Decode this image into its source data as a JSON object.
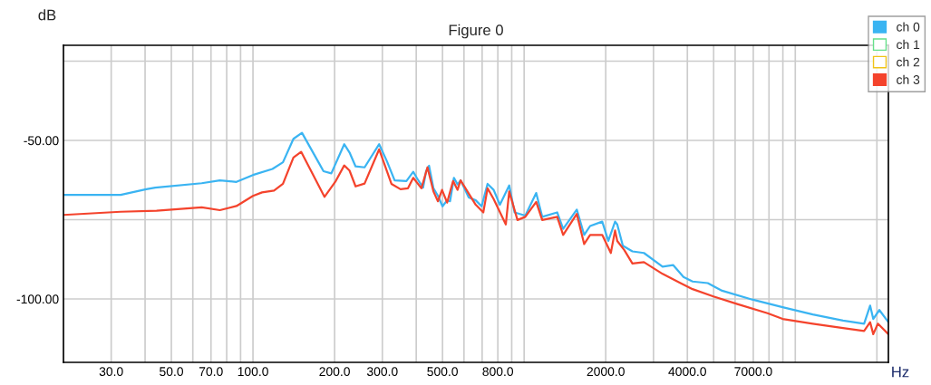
{
  "chart_data": {
    "type": "line",
    "title": "Figure 0",
    "xlabel": "Hz",
    "ylabel": "dB",
    "log": "x",
    "grid": true,
    "legend": "top right",
    "marker": "none",
    "line_style": "solid",
    "xlim": [
      20,
      22050
    ],
    "ylim": [
      -120,
      -20
    ],
    "xticks": [
      {
        "value": 30,
        "label": "30.0"
      },
      {
        "value": 40,
        "label": null
      },
      {
        "value": 50,
        "label": "50.0"
      },
      {
        "value": 60,
        "label": null
      },
      {
        "value": 70,
        "label": "70.0"
      },
      {
        "value": 80,
        "label": null
      },
      {
        "value": 90,
        "label": null
      },
      {
        "value": 100,
        "label": "100.0"
      },
      {
        "value": 200,
        "label": "200.0"
      },
      {
        "value": 300,
        "label": "300.0"
      },
      {
        "value": 400,
        "label": null
      },
      {
        "value": 500,
        "label": "500.0"
      },
      {
        "value": 600,
        "label": null
      },
      {
        "value": 700,
        "label": null
      },
      {
        "value": 800,
        "label": "800.0"
      },
      {
        "value": 900,
        "label": null
      },
      {
        "value": 1000,
        "label": null
      },
      {
        "value": 2000,
        "label": "2000.0"
      },
      {
        "value": 3000,
        "label": null
      },
      {
        "value": 4000,
        "label": "4000.0"
      },
      {
        "value": 5000,
        "label": null
      },
      {
        "value": 6000,
        "label": null
      },
      {
        "value": 7000,
        "label": "7000.0"
      },
      {
        "value": 8000,
        "label": null
      },
      {
        "value": 9000,
        "label": null
      },
      {
        "value": 10000,
        "label": null
      },
      {
        "value": 20000,
        "label": null
      }
    ],
    "yticks": [
      {
        "value": -100,
        "label": "-100.00"
      },
      {
        "value": -75,
        "label": null
      },
      {
        "value": -50,
        "label": "-50.00"
      },
      {
        "value": -25,
        "label": null
      }
    ],
    "series": [
      {
        "name": "ch 0",
        "color": "#3ab4f2",
        "x": [
          20,
          32.5,
          40.4,
          43.6,
          64.7,
          75.5,
          86.9,
          100,
          118,
          129,
          141,
          151.6,
          175,
          182,
          194.5,
          217,
          227,
          239,
          258,
          292,
          312,
          333,
          368,
          390,
          403,
          424,
          435,
          446,
          463,
          481,
          500,
          520,
          533,
          551,
          568,
          583,
          625,
          663,
          697,
          733,
          772,
          814,
          881,
          922,
          1010,
          1108,
          1166,
          1324,
          1393,
          1564,
          1665,
          1751,
          1941,
          2044,
          2165,
          2205,
          2312,
          2508,
          2766,
          3240,
          3543,
          3870,
          4180,
          4755,
          5370,
          6940,
          8980,
          11600,
          15000,
          17940,
          18880,
          19390,
          20420,
          22050
        ],
        "values": [
          -67.2,
          -67.2,
          -65.4,
          -64.9,
          -63.5,
          -62.6,
          -63.1,
          -60.9,
          -59.0,
          -56.9,
          -49.5,
          -47.6,
          -57.1,
          -59.7,
          -60.4,
          -51.2,
          -53.8,
          -58.2,
          -58.5,
          -51.2,
          -56.6,
          -62.6,
          -62.8,
          -59.9,
          -62.0,
          -64.9,
          -59.7,
          -58.0,
          -65.1,
          -67.5,
          -70.8,
          -68.9,
          -69.2,
          -61.8,
          -63.9,
          -62.6,
          -68.0,
          -68.9,
          -70.8,
          -63.7,
          -65.6,
          -70.3,
          -64.2,
          -72.7,
          -73.7,
          -66.6,
          -74.1,
          -72.7,
          -77.9,
          -71.8,
          -79.8,
          -77.0,
          -75.6,
          -81.7,
          -75.6,
          -76.5,
          -83.2,
          -85.0,
          -85.5,
          -89.8,
          -89.3,
          -93.1,
          -94.5,
          -95.0,
          -97.4,
          -100.2,
          -102.6,
          -104.9,
          -106.8,
          -107.8,
          -102.1,
          -106.3,
          -103.5,
          -107.3
        ]
      },
      {
        "name": "ch 1",
        "color": "#66e08a"
      },
      {
        "name": "ch 2",
        "color": "#f0c419"
      },
      {
        "name": "ch 3",
        "color": "#f4432c",
        "x": [
          20,
          32.5,
          44.1,
          64.7,
          75.5,
          86.9,
          100,
          108,
          119.6,
          129,
          141,
          150.5,
          183.5,
          202,
          217,
          227,
          239,
          258,
          292,
          324,
          350,
          373,
          390,
          418,
          440,
          463,
          481,
          498,
          520,
          547,
          568,
          583,
          663,
          707,
          733,
          772,
          856,
          881,
          945,
          1010,
          1108,
          1166,
          1324,
          1393,
          1564,
          1665,
          1751,
          1941,
          2088,
          2165,
          2205,
          2342,
          2508,
          2766,
          3240,
          3772,
          4180,
          4990,
          6110,
          7900,
          8980,
          11600,
          15000,
          17940,
          18880,
          19390,
          20170,
          22050
        ],
        "values": [
          -73.5,
          -72.5,
          -72.2,
          -71.1,
          -72.0,
          -70.7,
          -67.5,
          -66.4,
          -65.8,
          -63.7,
          -55.4,
          -53.6,
          -67.8,
          -62.8,
          -57.9,
          -59.5,
          -64.5,
          -63.6,
          -52.8,
          -63.7,
          -65.4,
          -65.1,
          -61.8,
          -65.1,
          -58.5,
          -66.1,
          -69.2,
          -65.6,
          -69.6,
          -62.8,
          -65.6,
          -62.6,
          -70.3,
          -72.7,
          -65.1,
          -68.5,
          -76.5,
          -66.1,
          -75.1,
          -74.1,
          -69.4,
          -75.1,
          -74.1,
          -79.8,
          -73.2,
          -82.7,
          -79.8,
          -79.8,
          -85.5,
          -78.4,
          -81.7,
          -84.6,
          -88.8,
          -88.4,
          -92.1,
          -95.0,
          -96.9,
          -99.2,
          -101.6,
          -104.5,
          -106.3,
          -107.8,
          -109.2,
          -110.1,
          -107.3,
          -111.1,
          -107.8,
          -111.1
        ]
      }
    ]
  }
}
